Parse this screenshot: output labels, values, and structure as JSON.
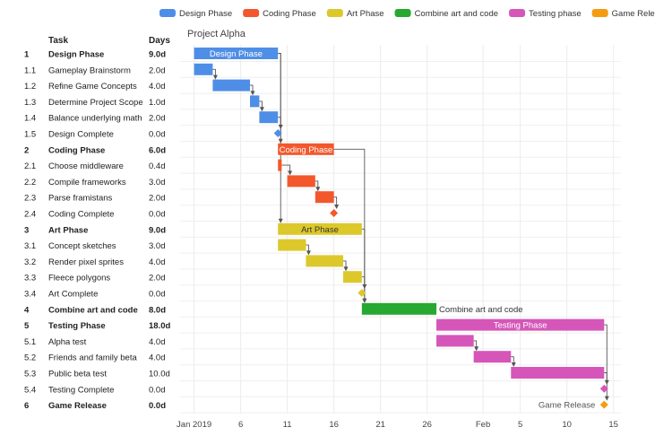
{
  "chart_data": {
    "type": "gantt",
    "title": "Project Alpha",
    "columns": {
      "task": "Task",
      "days": "Days"
    },
    "legend": [
      {
        "name": "Design Phase",
        "color": "#4f8ee6"
      },
      {
        "name": "Coding Phase",
        "color": "#f2582c"
      },
      {
        "name": "Art Phase",
        "color": "#dcc82a"
      },
      {
        "name": "Combine art and code",
        "color": "#27a830"
      },
      {
        "name": "Testing phase",
        "color": "#d556b8"
      },
      {
        "name": "Game Release",
        "color": "#f39c12"
      }
    ],
    "x_axis": {
      "unit": "days since Jan 1 2019",
      "min": -1.5,
      "max": 45.8,
      "ticks": [
        {
          "label": "Jan 2019",
          "value": 0
        },
        {
          "label": "6",
          "value": 5
        },
        {
          "label": "11",
          "value": 10
        },
        {
          "label": "16",
          "value": 15
        },
        {
          "label": "21",
          "value": 20
        },
        {
          "label": "26",
          "value": 25
        },
        {
          "label": "Feb",
          "value": 31
        },
        {
          "label": "5",
          "value": 35
        },
        {
          "label": "10",
          "value": 40
        },
        {
          "label": "15",
          "value": 45
        }
      ]
    },
    "tasks": [
      {
        "id": "1",
        "name": "Design Phase",
        "days": "9.0d",
        "start": 0,
        "duration": 9,
        "group": 0,
        "kind": "phase",
        "label": "Design Phase",
        "label_pos": "inside"
      },
      {
        "id": "1.1",
        "name": "Gameplay Brainstorm",
        "days": "2.0d",
        "start": 0,
        "duration": 2,
        "group": 0,
        "kind": "task"
      },
      {
        "id": "1.2",
        "name": "Refine Game Concepts",
        "days": "4.0d",
        "start": 2,
        "duration": 4,
        "group": 0,
        "kind": "task"
      },
      {
        "id": "1.3",
        "name": "Determine Project Scope",
        "days": "1.0d",
        "start": 6,
        "duration": 1,
        "group": 0,
        "kind": "task"
      },
      {
        "id": "1.4",
        "name": "Balance underlying math",
        "days": "2.0d",
        "start": 7,
        "duration": 2,
        "group": 0,
        "kind": "task"
      },
      {
        "id": "1.5",
        "name": "Design Complete",
        "days": "0.0d",
        "start": 9,
        "duration": 0,
        "group": 0,
        "kind": "milestone"
      },
      {
        "id": "2",
        "name": "Coding Phase",
        "days": "6.0d",
        "start": 9,
        "duration": 6,
        "group": 1,
        "kind": "phase",
        "label": "Coding Phase",
        "label_pos": "inside"
      },
      {
        "id": "2.1",
        "name": "Choose middleware",
        "days": "0.4d",
        "start": 9,
        "duration": 0.4,
        "group": 1,
        "kind": "task"
      },
      {
        "id": "2.2",
        "name": "Compile frameworks",
        "days": "3.0d",
        "start": 10,
        "duration": 3,
        "group": 1,
        "kind": "task"
      },
      {
        "id": "2.3",
        "name": "Parse framistans",
        "days": "2.0d",
        "start": 13,
        "duration": 2,
        "group": 1,
        "kind": "task"
      },
      {
        "id": "2.4",
        "name": "Coding Complete",
        "days": "0.0d",
        "start": 15,
        "duration": 0,
        "group": 1,
        "kind": "milestone"
      },
      {
        "id": "3",
        "name": "Art Phase",
        "days": "9.0d",
        "start": 9,
        "duration": 9,
        "group": 2,
        "kind": "phase",
        "label": "Art Phase",
        "label_pos": "inside"
      },
      {
        "id": "3.1",
        "name": "Concept sketches",
        "days": "3.0d",
        "start": 9,
        "duration": 3,
        "group": 2,
        "kind": "task"
      },
      {
        "id": "3.2",
        "name": "Render pixel sprites",
        "days": "4.0d",
        "start": 12,
        "duration": 4,
        "group": 2,
        "kind": "task"
      },
      {
        "id": "3.3",
        "name": "Fleece polygons",
        "days": "2.0d",
        "start": 16,
        "duration": 2,
        "group": 2,
        "kind": "task"
      },
      {
        "id": "3.4",
        "name": "Art Complete",
        "days": "0.0d",
        "start": 18,
        "duration": 0,
        "group": 2,
        "kind": "milestone"
      },
      {
        "id": "4",
        "name": "Combine art and code",
        "days": "8.0d",
        "start": 18,
        "duration": 8,
        "group": 3,
        "kind": "phase",
        "label": "Combine art and code",
        "label_pos": "right"
      },
      {
        "id": "5",
        "name": "Testing Phase",
        "days": "18.0d",
        "start": 26,
        "duration": 18,
        "group": 4,
        "kind": "phase",
        "label": "Testing Phase",
        "label_pos": "inside"
      },
      {
        "id": "5.1",
        "name": "Alpha test",
        "days": "4.0d",
        "start": 26,
        "duration": 4,
        "group": 4,
        "kind": "task"
      },
      {
        "id": "5.2",
        "name": "Friends and family beta",
        "days": "4.0d",
        "start": 30,
        "duration": 4,
        "group": 4,
        "kind": "task"
      },
      {
        "id": "5.3",
        "name": "Public beta test",
        "days": "10.0d",
        "start": 34,
        "duration": 10,
        "group": 4,
        "kind": "task"
      },
      {
        "id": "5.4",
        "name": "Testing Complete",
        "days": "0.0d",
        "start": 44,
        "duration": 0,
        "group": 4,
        "kind": "milestone"
      },
      {
        "id": "6",
        "name": "Game Release",
        "days": "0.0d",
        "start": 44,
        "duration": 0,
        "group": 5,
        "kind": "milestone",
        "label": "Game Release",
        "label_pos": "left"
      }
    ],
    "dependencies": [
      [
        "1.1",
        "1.2"
      ],
      [
        "1.2",
        "1.3"
      ],
      [
        "1.3",
        "1.4"
      ],
      [
        "1.4",
        "1.5"
      ],
      [
        "1",
        "2"
      ],
      [
        "2.1",
        "2.2"
      ],
      [
        "2.2",
        "2.3"
      ],
      [
        "2.3",
        "2.4"
      ],
      [
        "1",
        "3"
      ],
      [
        "3.1",
        "3.2"
      ],
      [
        "3.2",
        "3.3"
      ],
      [
        "3.3",
        "3.4"
      ],
      [
        "2",
        "4"
      ],
      [
        "3",
        "4"
      ],
      [
        "5.1",
        "5.2"
      ],
      [
        "5.2",
        "5.3"
      ],
      [
        "5.3",
        "5.4"
      ],
      [
        "5",
        "6"
      ]
    ]
  }
}
